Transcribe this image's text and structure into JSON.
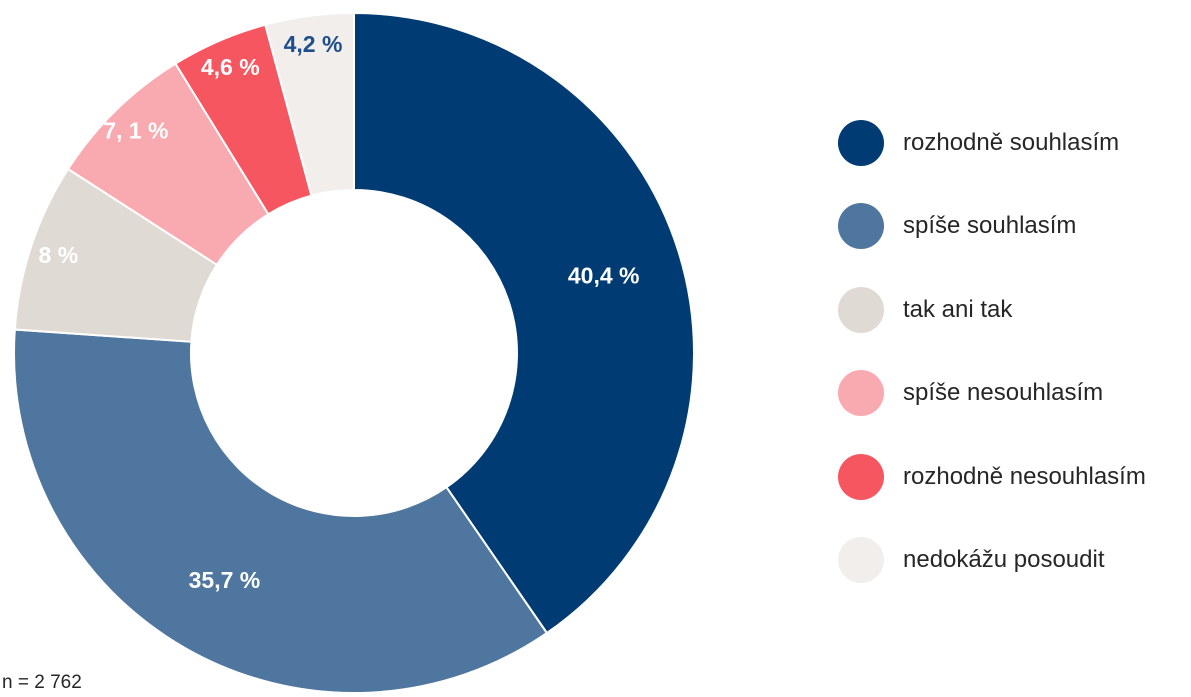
{
  "chart_data": {
    "type": "pie",
    "variant": "donut",
    "title": "",
    "legend_position": "right",
    "slices": [
      {
        "name": "rozhodně souhlasím",
        "value": 40.4,
        "label": "40,4 %",
        "color": "#003B73",
        "label_color": "#ffffff"
      },
      {
        "name": "spíše souhlasím",
        "value": 35.7,
        "label": "35,7 %",
        "color": "#4F769E",
        "label_color": "#ffffff"
      },
      {
        "name": "tak ani tak",
        "value": 8,
        "label": "8 %",
        "color": "#E0DAD5",
        "label_color": "#ffffff"
      },
      {
        "name": "spíše nesouhlasím",
        "value": 7.1,
        "label": "7, 1 %",
        "color": "#F9AAB0",
        "label_color": "#ffffff"
      },
      {
        "name": "rozhodně nesouhlasím",
        "value": 4.6,
        "label": "4,6 %",
        "color": "#F55660",
        "label_color": "#ffffff"
      },
      {
        "name": "nedokážu posoudit",
        "value": 4.2,
        "label": "4,2 %",
        "color": "#F1EEEB",
        "label_color": "#1F4E8C"
      }
    ],
    "note": "n = 2 762"
  }
}
